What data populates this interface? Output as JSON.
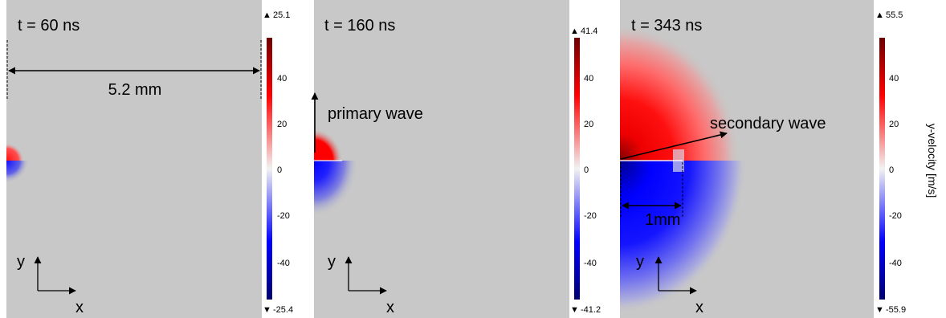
{
  "panels": [
    {
      "time_label": "t = 60 ns",
      "colorbar": {
        "max": "25.1",
        "min": "-25.4",
        "ticks": [
          "40",
          "20",
          "0",
          "-20",
          "-40"
        ]
      },
      "annotations": {
        "width": "5.2 mm"
      },
      "axes": {
        "x": "x",
        "y": "y"
      }
    },
    {
      "time_label": "t = 160 ns",
      "colorbar": {
        "max": "41.4",
        "min": "-41.2",
        "ticks": [
          "40",
          "20",
          "0",
          "-20",
          "-40"
        ]
      },
      "annotations": {
        "primary": "primary wave"
      },
      "axes": {
        "x": "x",
        "y": "y"
      }
    },
    {
      "time_label": "t = 343 ns",
      "colorbar": {
        "max": "55.5",
        "min": "-55.9",
        "ticks": [
          "40",
          "20",
          "0",
          "-20",
          "-40"
        ]
      },
      "annotations": {
        "secondary": "secondary wave",
        "scale": "1mm"
      },
      "axes": {
        "x": "x",
        "y": "y"
      }
    }
  ],
  "colorbar_title": "y-velocity [m/s]",
  "colors": {
    "background": "#c8c8c8",
    "positive": "#ff0000",
    "negative": "#0000ff",
    "dark_positive": "#6e0000",
    "dark_negative": "#00006e"
  }
}
